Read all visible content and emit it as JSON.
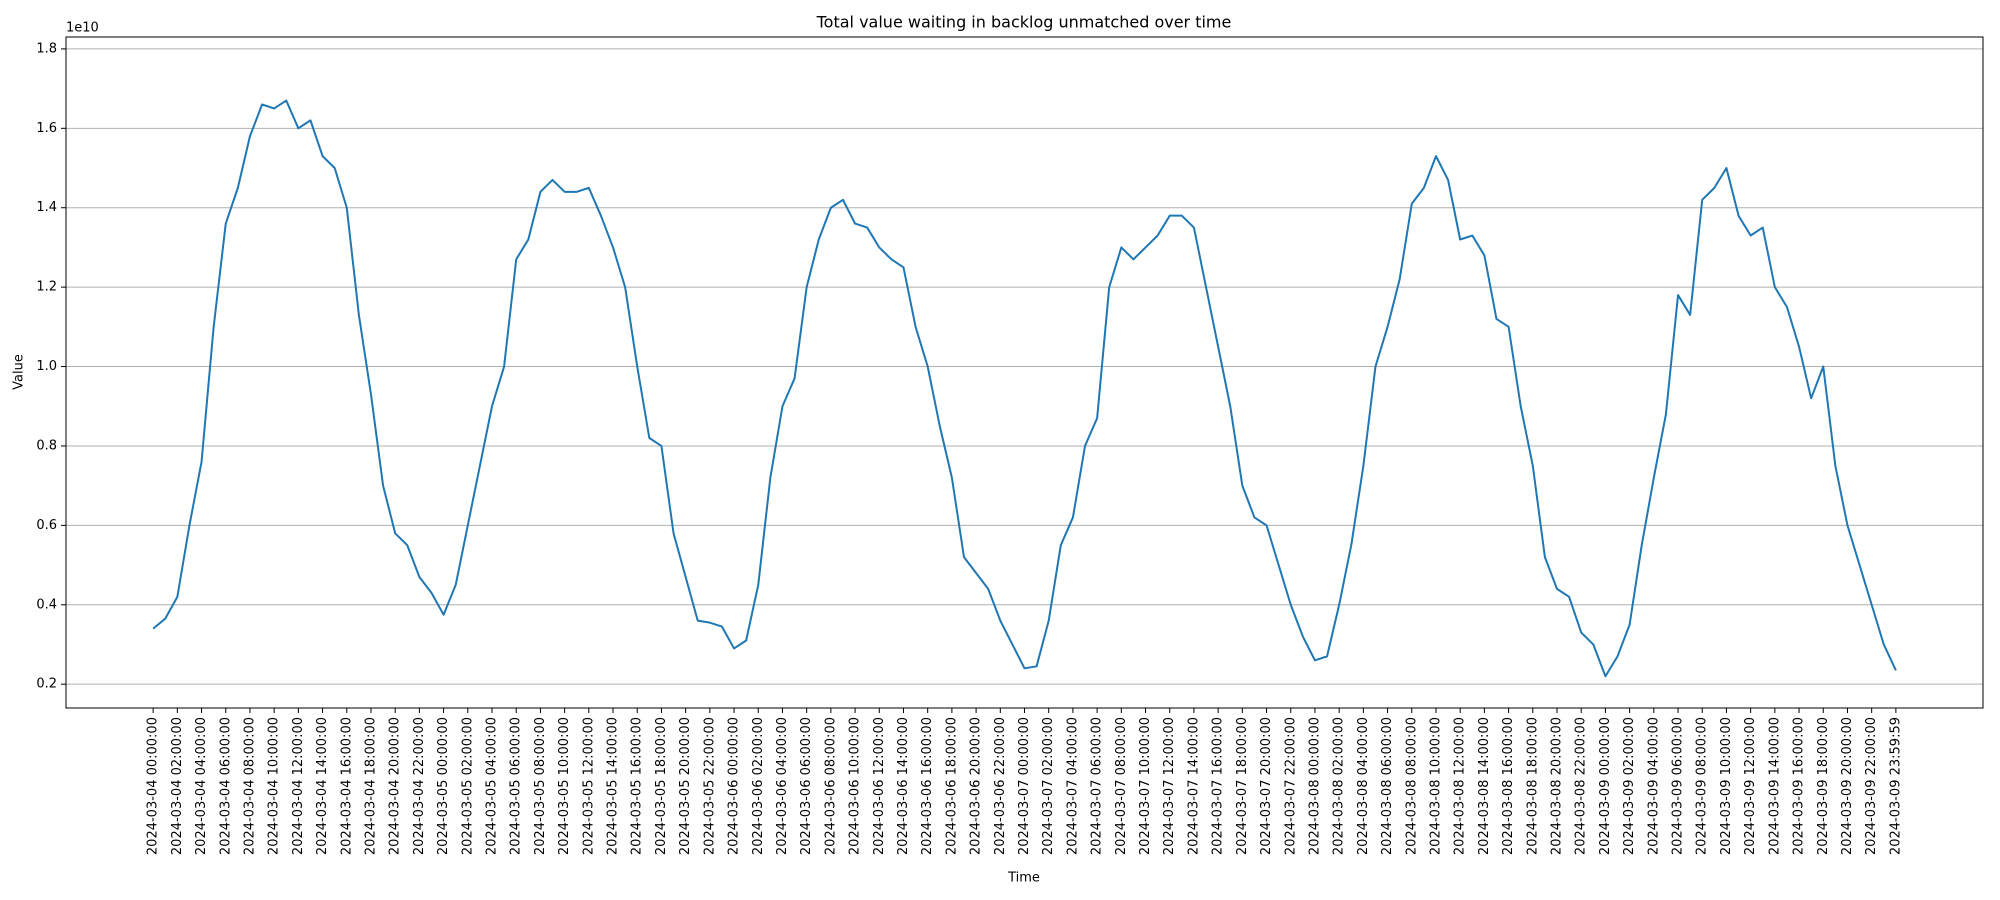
{
  "chart_data": {
    "type": "line",
    "title": "Total value waiting in backlog unmatched over time",
    "xlabel": "Time",
    "ylabel": "Value",
    "y_offset_label": "1e10",
    "grid": "y",
    "color": "#1f77b4",
    "x": [
      "2024-03-04 00:00:00",
      "2024-03-04 01:00:00",
      "2024-03-04 02:00:00",
      "2024-03-04 03:00:00",
      "2024-03-04 04:00:00",
      "2024-03-04 05:00:00",
      "2024-03-04 06:00:00",
      "2024-03-04 07:00:00",
      "2024-03-04 08:00:00",
      "2024-03-04 09:00:00",
      "2024-03-04 10:00:00",
      "2024-03-04 11:00:00",
      "2024-03-04 12:00:00",
      "2024-03-04 13:00:00",
      "2024-03-04 14:00:00",
      "2024-03-04 15:00:00",
      "2024-03-04 16:00:00",
      "2024-03-04 17:00:00",
      "2024-03-04 18:00:00",
      "2024-03-04 19:00:00",
      "2024-03-04 20:00:00",
      "2024-03-04 21:00:00",
      "2024-03-04 22:00:00",
      "2024-03-04 23:00:00",
      "2024-03-05 00:00:00",
      "2024-03-05 01:00:00",
      "2024-03-05 02:00:00",
      "2024-03-05 03:00:00",
      "2024-03-05 04:00:00",
      "2024-03-05 05:00:00",
      "2024-03-05 06:00:00",
      "2024-03-05 07:00:00",
      "2024-03-05 08:00:00",
      "2024-03-05 09:00:00",
      "2024-03-05 10:00:00",
      "2024-03-05 11:00:00",
      "2024-03-05 12:00:00",
      "2024-03-05 13:00:00",
      "2024-03-05 14:00:00",
      "2024-03-05 15:00:00",
      "2024-03-05 16:00:00",
      "2024-03-05 17:00:00",
      "2024-03-05 18:00:00",
      "2024-03-05 19:00:00",
      "2024-03-05 20:00:00",
      "2024-03-05 21:00:00",
      "2024-03-05 22:00:00",
      "2024-03-05 23:00:00",
      "2024-03-06 00:00:00",
      "2024-03-06 01:00:00",
      "2024-03-06 02:00:00",
      "2024-03-06 03:00:00",
      "2024-03-06 04:00:00",
      "2024-03-06 05:00:00",
      "2024-03-06 06:00:00",
      "2024-03-06 07:00:00",
      "2024-03-06 08:00:00",
      "2024-03-06 09:00:00",
      "2024-03-06 10:00:00",
      "2024-03-06 11:00:00",
      "2024-03-06 12:00:00",
      "2024-03-06 13:00:00",
      "2024-03-06 14:00:00",
      "2024-03-06 15:00:00",
      "2024-03-06 16:00:00",
      "2024-03-06 17:00:00",
      "2024-03-06 18:00:00",
      "2024-03-06 19:00:00",
      "2024-03-06 20:00:00",
      "2024-03-06 21:00:00",
      "2024-03-06 22:00:00",
      "2024-03-06 23:00:00",
      "2024-03-07 00:00:00",
      "2024-03-07 01:00:00",
      "2024-03-07 02:00:00",
      "2024-03-07 03:00:00",
      "2024-03-07 04:00:00",
      "2024-03-07 05:00:00",
      "2024-03-07 06:00:00",
      "2024-03-07 07:00:00",
      "2024-03-07 08:00:00",
      "2024-03-07 09:00:00",
      "2024-03-07 10:00:00",
      "2024-03-07 11:00:00",
      "2024-03-07 12:00:00",
      "2024-03-07 13:00:00",
      "2024-03-07 14:00:00",
      "2024-03-07 15:00:00",
      "2024-03-07 16:00:00",
      "2024-03-07 17:00:00",
      "2024-03-07 18:00:00",
      "2024-03-07 19:00:00",
      "2024-03-07 20:00:00",
      "2024-03-07 21:00:00",
      "2024-03-07 22:00:00",
      "2024-03-07 23:00:00",
      "2024-03-08 00:00:00",
      "2024-03-08 01:00:00",
      "2024-03-08 02:00:00",
      "2024-03-08 03:00:00",
      "2024-03-08 04:00:00",
      "2024-03-08 05:00:00",
      "2024-03-08 06:00:00",
      "2024-03-08 07:00:00",
      "2024-03-08 08:00:00",
      "2024-03-08 09:00:00",
      "2024-03-08 10:00:00",
      "2024-03-08 11:00:00",
      "2024-03-08 12:00:00",
      "2024-03-08 13:00:00",
      "2024-03-08 14:00:00",
      "2024-03-08 15:00:00",
      "2024-03-08 16:00:00",
      "2024-03-08 17:00:00",
      "2024-03-08 18:00:00",
      "2024-03-08 19:00:00",
      "2024-03-08 20:00:00",
      "2024-03-08 21:00:00",
      "2024-03-08 22:00:00",
      "2024-03-08 23:00:00",
      "2024-03-09 00:00:00",
      "2024-03-09 01:00:00",
      "2024-03-09 02:00:00",
      "2024-03-09 03:00:00",
      "2024-03-09 04:00:00",
      "2024-03-09 05:00:00",
      "2024-03-09 06:00:00",
      "2024-03-09 07:00:00",
      "2024-03-09 08:00:00",
      "2024-03-09 09:00:00",
      "2024-03-09 10:00:00",
      "2024-03-09 11:00:00",
      "2024-03-09 12:00:00",
      "2024-03-09 13:00:00",
      "2024-03-09 14:00:00",
      "2024-03-09 15:00:00",
      "2024-03-09 16:00:00",
      "2024-03-09 17:00:00",
      "2024-03-09 18:00:00",
      "2024-03-09 19:00:00",
      "2024-03-09 20:00:00",
      "2024-03-09 21:00:00",
      "2024-03-09 22:00:00",
      "2024-03-09 23:00:00",
      "2024-03-09 23:59:59"
    ],
    "values": [
      0.34,
      0.365,
      0.42,
      0.6,
      0.76,
      1.1,
      1.36,
      1.45,
      1.58,
      1.66,
      1.65,
      1.67,
      1.6,
      1.62,
      1.53,
      1.5,
      1.4,
      1.13,
      0.93,
      0.7,
      0.58,
      0.55,
      0.47,
      0.43,
      0.375,
      0.45,
      0.6,
      0.75,
      0.9,
      1.0,
      1.27,
      1.32,
      1.44,
      1.47,
      1.44,
      1.44,
      1.45,
      1.38,
      1.3,
      1.2,
      1.0,
      0.82,
      0.8,
      0.58,
      0.47,
      0.36,
      0.355,
      0.345,
      0.29,
      0.31,
      0.45,
      0.72,
      0.9,
      0.97,
      1.2,
      1.32,
      1.4,
      1.42,
      1.36,
      1.35,
      1.3,
      1.27,
      1.25,
      1.1,
      1.0,
      0.85,
      0.72,
      0.52,
      0.48,
      0.44,
      0.36,
      0.3,
      0.24,
      0.245,
      0.36,
      0.55,
      0.62,
      0.8,
      0.87,
      1.2,
      1.3,
      1.27,
      1.3,
      1.33,
      1.38,
      1.38,
      1.35,
      1.2,
      1.05,
      0.9,
      0.7,
      0.62,
      0.6,
      0.5,
      0.4,
      0.32,
      0.26,
      0.27,
      0.4,
      0.55,
      0.75,
      1.0,
      1.1,
      1.22,
      1.41,
      1.45,
      1.53,
      1.47,
      1.32,
      1.33,
      1.28,
      1.12,
      1.1,
      0.9,
      0.75,
      0.52,
      0.44,
      0.42,
      0.33,
      0.3,
      0.22,
      0.27,
      0.35,
      0.55,
      0.72,
      0.88,
      1.18,
      1.13,
      1.42,
      1.45,
      1.5,
      1.38,
      1.33,
      1.35,
      1.2,
      1.15,
      1.05,
      0.92,
      1.0,
      0.75,
      0.6,
      0.5,
      0.4,
      0.3,
      0.235
    ],
    "xlim": [
      "2024-03-03 16:48:00",
      "2024-03-10 07:11:59"
    ],
    "xticks": [
      "2024-03-04 00:00:00",
      "2024-03-04 02:00:00",
      "2024-03-04 04:00:00",
      "2024-03-04 06:00:00",
      "2024-03-04 08:00:00",
      "2024-03-04 10:00:00",
      "2024-03-04 12:00:00",
      "2024-03-04 14:00:00",
      "2024-03-04 16:00:00",
      "2024-03-04 18:00:00",
      "2024-03-04 20:00:00",
      "2024-03-04 22:00:00",
      "2024-03-05 00:00:00",
      "2024-03-05 02:00:00",
      "2024-03-05 04:00:00",
      "2024-03-05 06:00:00",
      "2024-03-05 08:00:00",
      "2024-03-05 10:00:00",
      "2024-03-05 12:00:00",
      "2024-03-05 14:00:00",
      "2024-03-05 16:00:00",
      "2024-03-05 18:00:00",
      "2024-03-05 20:00:00",
      "2024-03-05 22:00:00",
      "2024-03-06 00:00:00",
      "2024-03-06 02:00:00",
      "2024-03-06 04:00:00",
      "2024-03-06 06:00:00",
      "2024-03-06 08:00:00",
      "2024-03-06 10:00:00",
      "2024-03-06 12:00:00",
      "2024-03-06 14:00:00",
      "2024-03-06 16:00:00",
      "2024-03-06 18:00:00",
      "2024-03-06 20:00:00",
      "2024-03-06 22:00:00",
      "2024-03-07 00:00:00",
      "2024-03-07 02:00:00",
      "2024-03-07 04:00:00",
      "2024-03-07 06:00:00",
      "2024-03-07 08:00:00",
      "2024-03-07 10:00:00",
      "2024-03-07 12:00:00",
      "2024-03-07 14:00:00",
      "2024-03-07 16:00:00",
      "2024-03-07 18:00:00",
      "2024-03-07 20:00:00",
      "2024-03-07 22:00:00",
      "2024-03-08 00:00:00",
      "2024-03-08 02:00:00",
      "2024-03-08 04:00:00",
      "2024-03-08 06:00:00",
      "2024-03-08 08:00:00",
      "2024-03-08 10:00:00",
      "2024-03-08 12:00:00",
      "2024-03-08 14:00:00",
      "2024-03-08 16:00:00",
      "2024-03-08 18:00:00",
      "2024-03-08 20:00:00",
      "2024-03-08 22:00:00",
      "2024-03-09 00:00:00",
      "2024-03-09 02:00:00",
      "2024-03-09 04:00:00",
      "2024-03-09 06:00:00",
      "2024-03-09 08:00:00",
      "2024-03-09 10:00:00",
      "2024-03-09 12:00:00",
      "2024-03-09 14:00:00",
      "2024-03-09 16:00:00",
      "2024-03-09 18:00:00",
      "2024-03-09 20:00:00",
      "2024-03-09 22:00:00",
      "2024-03-09 23:59:59"
    ],
    "ylim": [
      0.14,
      1.83
    ],
    "yticks": [
      0.2,
      0.4,
      0.6,
      0.8,
      {
        "value": 1,
        "label": "1.0"
      },
      1.2,
      1.4,
      1.6,
      1.8
    ]
  }
}
